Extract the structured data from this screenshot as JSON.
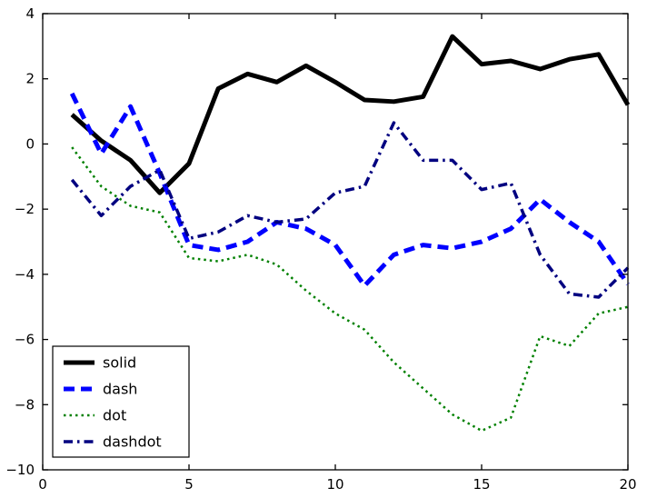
{
  "figure": {
    "background": "#ffffff",
    "frame_color": "#000000",
    "text_color": "#000000"
  },
  "chart_data": {
    "type": "line",
    "title": "",
    "xlabel": "",
    "ylabel": "",
    "xlim": [
      0,
      20
    ],
    "ylim": [
      -10,
      4
    ],
    "xticks": [
      0,
      5,
      10,
      15,
      20
    ],
    "yticks": [
      -10,
      -8,
      -6,
      -4,
      -2,
      0,
      2,
      4
    ],
    "grid": false,
    "legend_position": "lower left",
    "x": [
      1,
      2,
      3,
      4,
      5,
      6,
      7,
      8,
      9,
      10,
      11,
      12,
      13,
      14,
      15,
      16,
      17,
      18,
      19,
      20
    ],
    "series": [
      {
        "name": "solid",
        "color": "#000000",
        "linestyle": "solid",
        "linewidth": 5,
        "values": [
          0.9,
          0.1,
          -0.5,
          -1.5,
          -0.6,
          1.7,
          2.15,
          1.9,
          2.4,
          1.9,
          1.35,
          1.3,
          1.45,
          3.3,
          2.45,
          2.55,
          2.3,
          2.6,
          2.75,
          1.2
        ]
      },
      {
        "name": "dash",
        "color": "#0000ff",
        "linestyle": "dash",
        "linewidth": 5,
        "values": [
          1.55,
          -0.3,
          1.15,
          -0.9,
          -3.1,
          -3.25,
          -3.0,
          -2.4,
          -2.6,
          -3.1,
          -4.35,
          -3.4,
          -3.1,
          -3.2,
          -3.0,
          -2.6,
          -1.7,
          -2.4,
          -3.0,
          -4.3
        ]
      },
      {
        "name": "dot",
        "color": "#008000",
        "linestyle": "dot",
        "linewidth": 2.5,
        "values": [
          -0.1,
          -1.3,
          -1.9,
          -2.1,
          -3.5,
          -3.6,
          -3.4,
          -3.7,
          -4.5,
          -5.2,
          -5.7,
          -6.7,
          -7.5,
          -8.3,
          -8.8,
          -8.4,
          -5.9,
          -6.2,
          -5.2,
          -5.0
        ]
      },
      {
        "name": "dashdot",
        "color": "#000080",
        "linestyle": "dashdot",
        "linewidth": 3.5,
        "values": [
          -1.1,
          -2.2,
          -1.3,
          -0.8,
          -2.9,
          -2.7,
          -2.2,
          -2.4,
          -2.3,
          -1.5,
          -1.3,
          0.65,
          -0.5,
          -0.5,
          -1.4,
          -1.2,
          -3.4,
          -4.6,
          -4.7,
          -3.8
        ]
      }
    ],
    "legend_entries": [
      "solid",
      "dash",
      "dot",
      "dashdot"
    ]
  }
}
